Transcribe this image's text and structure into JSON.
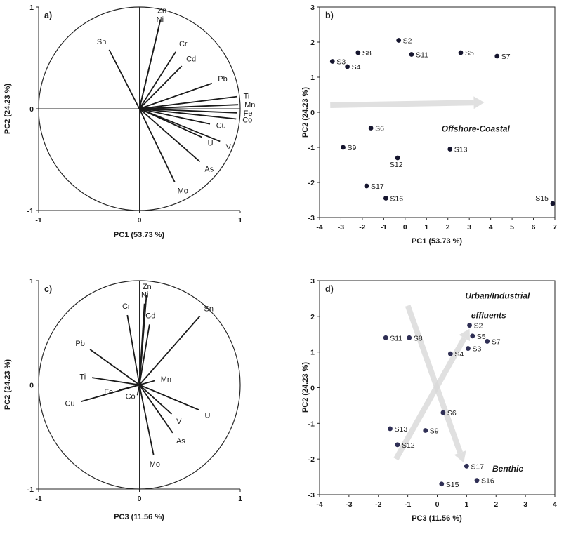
{
  "page": {
    "background": "#ffffff"
  },
  "styles": {
    "axis_color": "#262626",
    "vector_color": "#1a1a1a",
    "arrow_color": "#d9d9d9",
    "point_color": "#1b1b35"
  },
  "chart_data": [
    {
      "id": "a",
      "type": "scatter",
      "variant": "loadings",
      "panel_label": "a)",
      "xlabel": "PC1 (53.73 %)",
      "ylabel": "PC2 (24.23 %)",
      "xlim": [
        -1,
        1
      ],
      "ylim": [
        -1,
        1
      ],
      "xticks": [
        -1,
        0,
        1
      ],
      "yticks": [
        -1,
        0,
        1
      ],
      "unit_circle": true,
      "vectors": [
        {
          "label": "Zn",
          "x": 0.21,
          "y": 0.88
        },
        {
          "label": "Ni",
          "x": 0.19,
          "y": 0.79
        },
        {
          "label": "Sn",
          "x": -0.3,
          "y": 0.58
        },
        {
          "label": "Cr",
          "x": 0.36,
          "y": 0.56
        },
        {
          "label": "Cd",
          "x": 0.42,
          "y": 0.42
        },
        {
          "label": "Pb",
          "x": 0.72,
          "y": 0.25
        },
        {
          "label": "Ti",
          "x": 0.97,
          "y": 0.12
        },
        {
          "label": "Mn",
          "x": 0.98,
          "y": 0.04
        },
        {
          "label": "Fe",
          "x": 0.97,
          "y": -0.04
        },
        {
          "label": "Co",
          "x": 0.96,
          "y": -0.1
        },
        {
          "label": "Cu",
          "x": 0.7,
          "y": -0.15
        },
        {
          "label": "U",
          "x": 0.62,
          "y": -0.28
        },
        {
          "label": "V",
          "x": 0.8,
          "y": -0.32
        },
        {
          "label": "As",
          "x": 0.6,
          "y": -0.52
        },
        {
          "label": "Mo",
          "x": 0.35,
          "y": -0.72
        }
      ]
    },
    {
      "id": "b",
      "type": "scatter",
      "variant": "scores",
      "panel_label": "b)",
      "xlabel": "PC1 (53.73 %)",
      "ylabel": "PC2 (24.23 %)",
      "xlim": [
        -4,
        7
      ],
      "ylim": [
        -3,
        3
      ],
      "xticks": [
        -4,
        -3,
        -2,
        -1,
        0,
        1,
        2,
        3,
        4,
        5,
        6,
        7
      ],
      "yticks": [
        -3,
        -2,
        -1,
        0,
        1,
        2,
        3
      ],
      "point_color": "#15152e",
      "points": [
        {
          "label": "S2",
          "x": -0.3,
          "y": 2.05,
          "label_side": "right"
        },
        {
          "label": "S8",
          "x": -2.2,
          "y": 1.7,
          "label_side": "right"
        },
        {
          "label": "S11",
          "x": 0.3,
          "y": 1.65,
          "label_side": "right"
        },
        {
          "label": "S5",
          "x": 2.6,
          "y": 1.7,
          "label_side": "right"
        },
        {
          "label": "S7",
          "x": 4.3,
          "y": 1.6,
          "label_side": "right"
        },
        {
          "label": "S3",
          "x": -3.4,
          "y": 1.45,
          "label_side": "right"
        },
        {
          "label": "S4",
          "x": -2.7,
          "y": 1.3,
          "label_side": "right"
        },
        {
          "label": "S6",
          "x": -1.6,
          "y": -0.45,
          "label_side": "right"
        },
        {
          "label": "S9",
          "x": -2.9,
          "y": -1.0,
          "label_side": "right"
        },
        {
          "label": "S13",
          "x": 2.1,
          "y": -1.05,
          "label_side": "right"
        },
        {
          "label": "S12",
          "x": -0.35,
          "y": -1.3,
          "label_side": "below"
        },
        {
          "label": "S17",
          "x": -1.8,
          "y": -2.1,
          "label_side": "right"
        },
        {
          "label": "S16",
          "x": -0.9,
          "y": -2.45,
          "label_side": "right"
        },
        {
          "label": "S15",
          "x": 6.9,
          "y": -2.6,
          "label_side": "left",
          "ldy": -4
        }
      ],
      "arrows": [
        {
          "x1": -3.5,
          "y1": 0.2,
          "x2": 3.7,
          "y2": 0.28
        }
      ],
      "annotations": [
        {
          "text": "Offshore-Coastal",
          "x": 3.3,
          "y": -0.55
        }
      ]
    },
    {
      "id": "c",
      "type": "scatter",
      "variant": "loadings",
      "panel_label": "c)",
      "xlabel": "PC3 (11.56 %)",
      "ylabel": "PC2 (24.23 %)",
      "xlim": [
        -1,
        1
      ],
      "ylim": [
        -1,
        1
      ],
      "xticks": [
        -1,
        0,
        1
      ],
      "yticks": [
        -1,
        0,
        1
      ],
      "unit_circle": true,
      "vectors": [
        {
          "label": "Zn",
          "x": 0.07,
          "y": 0.86
        },
        {
          "label": "Ni",
          "x": 0.05,
          "y": 0.78
        },
        {
          "label": "Cr",
          "x": -0.12,
          "y": 0.67
        },
        {
          "label": "Cd",
          "x": 0.1,
          "y": 0.58
        },
        {
          "label": "Sn",
          "x": 0.6,
          "y": 0.66
        },
        {
          "label": "Pb",
          "x": -0.49,
          "y": 0.34
        },
        {
          "label": "Ti",
          "x": -0.47,
          "y": 0.07
        },
        {
          "label": "Mn",
          "x": 0.15,
          "y": 0.04
        },
        {
          "label": "Fe",
          "x": -0.2,
          "y": -0.05
        },
        {
          "label": "Co",
          "x": -0.02,
          "y": -0.1,
          "ldx": -3,
          "ldy": 5,
          "anchor": "end"
        },
        {
          "label": "Cu",
          "x": -0.58,
          "y": -0.16
        },
        {
          "label": "V",
          "x": 0.32,
          "y": -0.28
        },
        {
          "label": "U",
          "x": 0.59,
          "y": -0.24
        },
        {
          "label": "As",
          "x": 0.33,
          "y": -0.46
        },
        {
          "label": "Mo",
          "x": 0.14,
          "y": -0.67
        }
      ]
    },
    {
      "id": "d",
      "type": "scatter",
      "variant": "scores",
      "panel_label": "d)",
      "xlabel": "PC3 (11.56 %)",
      "ylabel": "PC2 (24.23 %)",
      "xlim": [
        -4,
        4
      ],
      "ylim": [
        -3,
        3
      ],
      "xticks": [
        -4,
        -3,
        -2,
        -1,
        0,
        1,
        2,
        3,
        4
      ],
      "yticks": [
        -3,
        -2,
        -1,
        0,
        1,
        2,
        3
      ],
      "point_color": "#2f2f55",
      "points": [
        {
          "label": "S2",
          "x": 1.1,
          "y": 1.75,
          "label_side": "right"
        },
        {
          "label": "S5",
          "x": 1.2,
          "y": 1.45,
          "label_side": "right"
        },
        {
          "label": "S7",
          "x": 1.7,
          "y": 1.3,
          "label_side": "right"
        },
        {
          "label": "S3",
          "x": 1.05,
          "y": 1.1,
          "label_side": "right"
        },
        {
          "label": "S4",
          "x": 0.45,
          "y": 0.95,
          "label_side": "right"
        },
        {
          "label": "S8",
          "x": -0.95,
          "y": 1.4,
          "label_side": "right"
        },
        {
          "label": "S11",
          "x": -1.75,
          "y": 1.4,
          "label_side": "right"
        },
        {
          "label": "S6",
          "x": 0.2,
          "y": -0.7,
          "label_side": "right"
        },
        {
          "label": "S9",
          "x": -0.4,
          "y": -1.2,
          "label_side": "right"
        },
        {
          "label": "S13",
          "x": -1.6,
          "y": -1.15,
          "label_side": "right"
        },
        {
          "label": "S12",
          "x": -1.35,
          "y": -1.6,
          "label_side": "right"
        },
        {
          "label": "S17",
          "x": 1.0,
          "y": -2.2,
          "label_side": "right"
        },
        {
          "label": "S16",
          "x": 1.35,
          "y": -2.6,
          "label_side": "right"
        },
        {
          "label": "S15",
          "x": 0.15,
          "y": -2.7,
          "label_side": "right"
        }
      ],
      "arrows": [
        {
          "x1": -1.0,
          "y1": 2.3,
          "x2": 0.9,
          "y2": -2.1
        },
        {
          "x1": -1.4,
          "y1": -2.0,
          "x2": 1.1,
          "y2": 1.65
        }
      ],
      "annotations": [
        {
          "text": "Urban/Industrial",
          "x": 2.05,
          "y": 2.5
        },
        {
          "text": "effluents",
          "x": 1.75,
          "y": 1.95
        },
        {
          "text": "Benthic",
          "x": 2.4,
          "y": -2.35
        }
      ]
    }
  ]
}
